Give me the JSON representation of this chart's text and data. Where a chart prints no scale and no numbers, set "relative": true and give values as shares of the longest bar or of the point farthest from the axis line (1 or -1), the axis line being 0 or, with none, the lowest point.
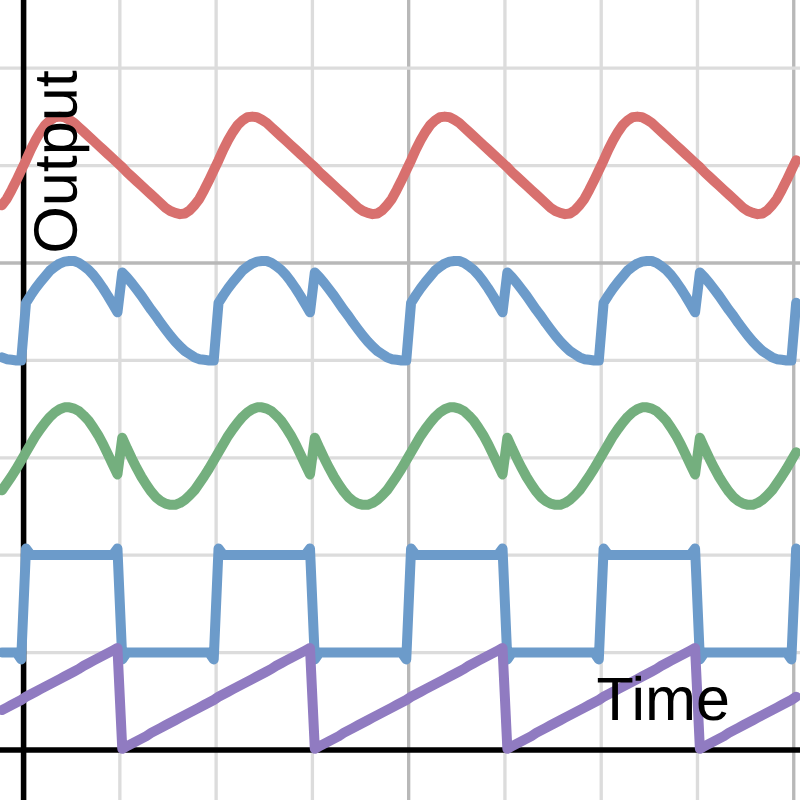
{
  "chart_data": {
    "type": "line",
    "xlabel": "Time",
    "ylabel": "Output",
    "relative": true,
    "grid": true,
    "categories": [
      null,
      null,
      null,
      null,
      null,
      null,
      null,
      null,
      null,
      null,
      null,
      null,
      null,
      null,
      null,
      null,
      null,
      null,
      null,
      null,
      null,
      null,
      null,
      null,
      null,
      null,
      null,
      null,
      null,
      null,
      null,
      null,
      null,
      null,
      null,
      null,
      null,
      null,
      null,
      null,
      null,
      null,
      null,
      null,
      null,
      null,
      null,
      null,
      null,
      null,
      null,
      null,
      null,
      null,
      null,
      null,
      null,
      null,
      null,
      null,
      null,
      null,
      null,
      null,
      null,
      null,
      null,
      null,
      null,
      null,
      null,
      null,
      null,
      null,
      null,
      null,
      null,
      null,
      null,
      null,
      null,
      null,
      null,
      null,
      null,
      null,
      null,
      null,
      null,
      null,
      null,
      null,
      null,
      null,
      null,
      null,
      null,
      null,
      null,
      null,
      null,
      null,
      null,
      null,
      null,
      null,
      null,
      null,
      null,
      null,
      null,
      null,
      null,
      null,
      null,
      null,
      null,
      null,
      null,
      null,
      null,
      null,
      null,
      null,
      null,
      null,
      null,
      null,
      null,
      null,
      null,
      null,
      null,
      null,
      null,
      null,
      null,
      null,
      null,
      null,
      null,
      null,
      null,
      null,
      null,
      null,
      null,
      null,
      null,
      null,
      null,
      null,
      null,
      null,
      null,
      null,
      null,
      null,
      null,
      null,
      null,
      null,
      null,
      null,
      null,
      null
    ],
    "series": [
      {
        "color": "#d8706e",
        "values": [
          0.86,
          0.87,
          0.884,
          0.899,
          0.915,
          0.931,
          0.948,
          0.963,
          0.976,
          0.987,
          0.994,
          0.999,
          1,
          0.999,
          0.995,
          0.99,
          0.983,
          0.976,
          0.969,
          0.962,
          0.955,
          0.948,
          0.941,
          0.934,
          0.927,
          0.92,
          0.912,
          0.905,
          0.898,
          0.891,
          0.884,
          0.877,
          0.87,
          0.863,
          0.856,
          0.851,
          0.848,
          0.846,
          0.847,
          0.852,
          0.86,
          0.87,
          0.884,
          0.899,
          0.915,
          0.931,
          0.948,
          0.963,
          0.976,
          0.987,
          0.994,
          0.999,
          1,
          0.999,
          0.995,
          0.99,
          0.983,
          0.976,
          0.969,
          0.962,
          0.955,
          0.948,
          0.941,
          0.934,
          0.927,
          0.92,
          0.912,
          0.905,
          0.898,
          0.891,
          0.884,
          0.877,
          0.87,
          0.863,
          0.856,
          0.851,
          0.848,
          0.846,
          0.847,
          0.852,
          0.86,
          0.87,
          0.884,
          0.899,
          0.915,
          0.931,
          0.948,
          0.963,
          0.976,
          0.987,
          0.994,
          0.999,
          1,
          0.999,
          0.995,
          0.99,
          0.983,
          0.976,
          0.969,
          0.962,
          0.955,
          0.948,
          0.941,
          0.934,
          0.927,
          0.92,
          0.912,
          0.905,
          0.898,
          0.891,
          0.884,
          0.877,
          0.87,
          0.863,
          0.856,
          0.851,
          0.848,
          0.846,
          0.847,
          0.852,
          0.86,
          0.87,
          0.884,
          0.899,
          0.915,
          0.931,
          0.948,
          0.963,
          0.976,
          0.987,
          0.994,
          0.999,
          1,
          0.999,
          0.995,
          0.99,
          0.983,
          0.976,
          0.969,
          0.962,
          0.955,
          0.948,
          0.941,
          0.934,
          0.927,
          0.92,
          0.912,
          0.905,
          0.898,
          0.891,
          0.884,
          0.877,
          0.87,
          0.863,
          0.856,
          0.851,
          0.848,
          0.846,
          0.847,
          0.852,
          0.86,
          0.87,
          0.884,
          0.899,
          0.915,
          0.931
        ]
      },
      {
        "color": "#6c9bca",
        "values": [
          0.62,
          0.617,
          0.616,
          0.615,
          0.615,
          0.706,
          0.718,
          0.729,
          0.739,
          0.748,
          0.757,
          0.763,
          0.768,
          0.771,
          0.772,
          0.772,
          0.769,
          0.764,
          0.758,
          0.75,
          0.74,
          0.729,
          0.717,
          0.704,
          0.691,
          0.754,
          0.746,
          0.737,
          0.727,
          0.717,
          0.706,
          0.695,
          0.685,
          0.674,
          0.664,
          0.654,
          0.645,
          0.637,
          0.63,
          0.625,
          0.62,
          0.617,
          0.616,
          0.615,
          0.615,
          0.706,
          0.718,
          0.729,
          0.739,
          0.748,
          0.757,
          0.763,
          0.768,
          0.771,
          0.772,
          0.772,
          0.769,
          0.764,
          0.758,
          0.75,
          0.74,
          0.729,
          0.717,
          0.704,
          0.691,
          0.754,
          0.746,
          0.737,
          0.727,
          0.717,
          0.706,
          0.695,
          0.685,
          0.674,
          0.664,
          0.654,
          0.645,
          0.637,
          0.63,
          0.625,
          0.62,
          0.617,
          0.616,
          0.615,
          0.615,
          0.706,
          0.718,
          0.729,
          0.739,
          0.748,
          0.757,
          0.763,
          0.768,
          0.771,
          0.772,
          0.772,
          0.769,
          0.764,
          0.758,
          0.75,
          0.74,
          0.729,
          0.717,
          0.704,
          0.691,
          0.754,
          0.746,
          0.737,
          0.727,
          0.717,
          0.706,
          0.695,
          0.685,
          0.674,
          0.664,
          0.654,
          0.645,
          0.637,
          0.63,
          0.625,
          0.62,
          0.617,
          0.616,
          0.615,
          0.615,
          0.706,
          0.718,
          0.729,
          0.739,
          0.748,
          0.757,
          0.763,
          0.768,
          0.771,
          0.772,
          0.772,
          0.769,
          0.764,
          0.758,
          0.75,
          0.74,
          0.729,
          0.717,
          0.704,
          0.691,
          0.754,
          0.746,
          0.737,
          0.727,
          0.717,
          0.706,
          0.695,
          0.685,
          0.674,
          0.664,
          0.654,
          0.645,
          0.637,
          0.63,
          0.625,
          0.62,
          0.617,
          0.616,
          0.615,
          0.615,
          0.706
        ]
      },
      {
        "color": "#74af7e",
        "values": [
          0.41,
          0.421,
          0.432,
          0.444,
          0.457,
          0.47,
          0.483,
          0.496,
          0.507,
          0.517,
          0.526,
          0.533,
          0.538,
          0.541,
          0.541,
          0.539,
          0.535,
          0.528,
          0.52,
          0.509,
          0.497,
          0.483,
          0.467,
          0.451,
          0.435,
          0.493,
          0.476,
          0.46,
          0.445,
          0.431,
          0.419,
          0.408,
          0.399,
          0.393,
          0.389,
          0.387,
          0.387,
          0.39,
          0.395,
          0.402,
          0.41,
          0.421,
          0.432,
          0.444,
          0.457,
          0.47,
          0.483,
          0.496,
          0.507,
          0.517,
          0.526,
          0.533,
          0.538,
          0.541,
          0.541,
          0.539,
          0.535,
          0.528,
          0.52,
          0.509,
          0.497,
          0.483,
          0.467,
          0.451,
          0.435,
          0.493,
          0.476,
          0.46,
          0.445,
          0.431,
          0.419,
          0.408,
          0.399,
          0.393,
          0.389,
          0.387,
          0.387,
          0.39,
          0.395,
          0.402,
          0.41,
          0.421,
          0.432,
          0.444,
          0.457,
          0.47,
          0.483,
          0.496,
          0.507,
          0.517,
          0.526,
          0.533,
          0.538,
          0.541,
          0.541,
          0.539,
          0.535,
          0.528,
          0.52,
          0.509,
          0.497,
          0.483,
          0.467,
          0.451,
          0.435,
          0.493,
          0.476,
          0.46,
          0.445,
          0.431,
          0.419,
          0.408,
          0.399,
          0.393,
          0.389,
          0.387,
          0.387,
          0.39,
          0.395,
          0.402,
          0.41,
          0.421,
          0.432,
          0.444,
          0.457,
          0.47,
          0.483,
          0.496,
          0.507,
          0.517,
          0.526,
          0.533,
          0.538,
          0.541,
          0.541,
          0.539,
          0.535,
          0.528,
          0.52,
          0.509,
          0.497,
          0.483,
          0.467,
          0.451,
          0.435,
          0.493,
          0.476,
          0.46,
          0.445,
          0.431,
          0.419,
          0.408,
          0.399,
          0.393,
          0.389,
          0.387,
          0.387,
          0.39,
          0.395,
          0.402,
          0.41,
          0.421,
          0.432,
          0.444,
          0.457,
          0.47
        ]
      },
      {
        "color": "#6c9bca",
        "values": [
          0.154,
          0.154,
          0.154,
          0.154,
          0.143,
          0.318,
          0.308,
          0.308,
          0.308,
          0.308,
          0.308,
          0.308,
          0.308,
          0.308,
          0.308,
          0.308,
          0.308,
          0.308,
          0.308,
          0.308,
          0.308,
          0.308,
          0.308,
          0.308,
          0.318,
          0.143,
          0.154,
          0.154,
          0.154,
          0.154,
          0.154,
          0.154,
          0.154,
          0.154,
          0.154,
          0.154,
          0.154,
          0.154,
          0.154,
          0.154,
          0.154,
          0.154,
          0.154,
          0.154,
          0.143,
          0.318,
          0.308,
          0.308,
          0.308,
          0.308,
          0.308,
          0.308,
          0.308,
          0.308,
          0.308,
          0.308,
          0.308,
          0.308,
          0.308,
          0.308,
          0.308,
          0.308,
          0.308,
          0.308,
          0.318,
          0.143,
          0.154,
          0.154,
          0.154,
          0.154,
          0.154,
          0.154,
          0.154,
          0.154,
          0.154,
          0.154,
          0.154,
          0.154,
          0.154,
          0.154,
          0.154,
          0.154,
          0.154,
          0.154,
          0.143,
          0.318,
          0.308,
          0.308,
          0.308,
          0.308,
          0.308,
          0.308,
          0.308,
          0.308,
          0.308,
          0.308,
          0.308,
          0.308,
          0.308,
          0.308,
          0.308,
          0.308,
          0.308,
          0.308,
          0.318,
          0.143,
          0.154,
          0.154,
          0.154,
          0.154,
          0.154,
          0.154,
          0.154,
          0.154,
          0.154,
          0.154,
          0.154,
          0.154,
          0.154,
          0.154,
          0.154,
          0.154,
          0.154,
          0.154,
          0.143,
          0.318,
          0.308,
          0.308,
          0.308,
          0.308,
          0.308,
          0.308,
          0.308,
          0.308,
          0.308,
          0.308,
          0.308,
          0.308,
          0.308,
          0.308,
          0.308,
          0.308,
          0.308,
          0.308,
          0.318,
          0.143,
          0.154,
          0.154,
          0.154,
          0.154,
          0.154,
          0.154,
          0.154,
          0.154,
          0.154,
          0.154,
          0.154,
          0.154,
          0.154,
          0.154,
          0.154,
          0.154,
          0.154,
          0.154,
          0.143,
          0.318
        ]
      },
      {
        "color": "#907bc1",
        "values": [
          0.063,
          0.067,
          0.071,
          0.075,
          0.079,
          0.084,
          0.088,
          0.092,
          0.096,
          0.1,
          0.104,
          0.108,
          0.112,
          0.116,
          0.12,
          0.124,
          0.128,
          0.133,
          0.137,
          0.141,
          0.145,
          0.149,
          0.153,
          0.157,
          0.161,
          0.002,
          0.006,
          0.01,
          0.014,
          0.018,
          0.022,
          0.027,
          0.031,
          0.035,
          0.039,
          0.043,
          0.047,
          0.051,
          0.055,
          0.059,
          0.063,
          0.067,
          0.071,
          0.075,
          0.079,
          0.084,
          0.088,
          0.092,
          0.096,
          0.1,
          0.104,
          0.108,
          0.112,
          0.116,
          0.12,
          0.124,
          0.128,
          0.133,
          0.137,
          0.141,
          0.145,
          0.149,
          0.153,
          0.157,
          0.161,
          0.002,
          0.006,
          0.01,
          0.014,
          0.018,
          0.022,
          0.027,
          0.031,
          0.035,
          0.039,
          0.043,
          0.047,
          0.051,
          0.055,
          0.059,
          0.063,
          0.067,
          0.071,
          0.075,
          0.079,
          0.084,
          0.088,
          0.092,
          0.096,
          0.1,
          0.104,
          0.108,
          0.112,
          0.116,
          0.12,
          0.124,
          0.128,
          0.133,
          0.137,
          0.141,
          0.145,
          0.149,
          0.153,
          0.157,
          0.161,
          0.002,
          0.006,
          0.01,
          0.014,
          0.018,
          0.022,
          0.027,
          0.031,
          0.035,
          0.039,
          0.043,
          0.047,
          0.051,
          0.055,
          0.059,
          0.063,
          0.067,
          0.071,
          0.075,
          0.079,
          0.084,
          0.088,
          0.092,
          0.096,
          0.1,
          0.104,
          0.108,
          0.112,
          0.116,
          0.12,
          0.124,
          0.128,
          0.133,
          0.137,
          0.141,
          0.145,
          0.149,
          0.153,
          0.157,
          0.161,
          0.002,
          0.006,
          0.01,
          0.014,
          0.018,
          0.022,
          0.027,
          0.031,
          0.035,
          0.039,
          0.043,
          0.047,
          0.051,
          0.055,
          0.059,
          0.063,
          0.067,
          0.071,
          0.075,
          0.079,
          0.084
        ]
      }
    ]
  }
}
